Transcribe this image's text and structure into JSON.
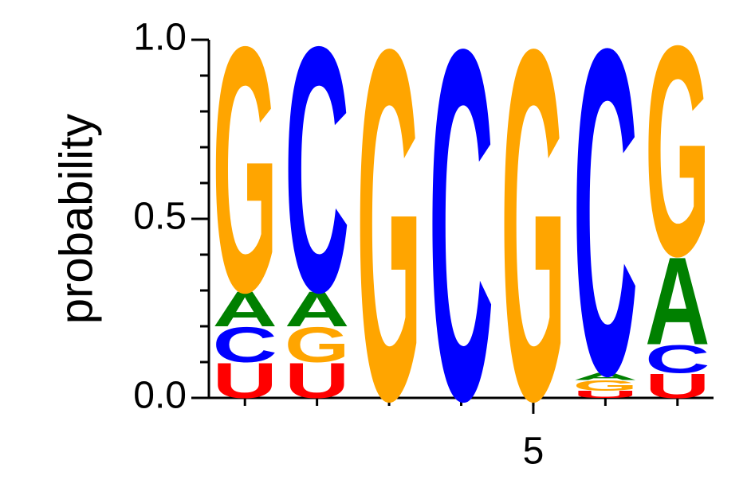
{
  "chart_data": {
    "type": "sequence-logo",
    "ylabel": "probability",
    "ylim": [
      0,
      1
    ],
    "yticks": [
      {
        "value": 0,
        "label": "0.0"
      },
      0.5,
      {
        "value": 1,
        "label": "1.0"
      }
    ],
    "yminorticks": [
      0.1,
      0.2,
      0.3,
      0.4,
      0.6,
      0.7,
      0.8,
      0.9
    ],
    "xlim": [
      0.5,
      7.5
    ],
    "xticks": [
      5
    ],
    "x": [
      1,
      2,
      3,
      4,
      5,
      6,
      7
    ],
    "letter_colors": {
      "A": "#008000",
      "C": "#0000ff",
      "G": "#ffa500",
      "U": "#ff0000"
    },
    "positions": [
      {
        "letters": [
          "U",
          "C",
          "A",
          "G"
        ],
        "values": [
          0.1,
          0.1,
          0.1,
          0.7
        ]
      },
      {
        "letters": [
          "U",
          "G",
          "A",
          "C"
        ],
        "values": [
          0.1,
          0.1,
          0.1,
          0.7
        ]
      },
      {
        "letters": [
          "G"
        ],
        "values": [
          1.0
        ]
      },
      {
        "letters": [
          "C"
        ],
        "values": [
          1.0
        ]
      },
      {
        "letters": [
          "G"
        ],
        "values": [
          1.0
        ]
      },
      {
        "letters": [
          "U",
          "G",
          "A",
          "C"
        ],
        "values": [
          0.02,
          0.03,
          0.02,
          0.93
        ]
      },
      {
        "letters": [
          "U",
          "C",
          "A",
          "G"
        ],
        "values": [
          0.07,
          0.08,
          0.25,
          0.6
        ]
      }
    ]
  }
}
